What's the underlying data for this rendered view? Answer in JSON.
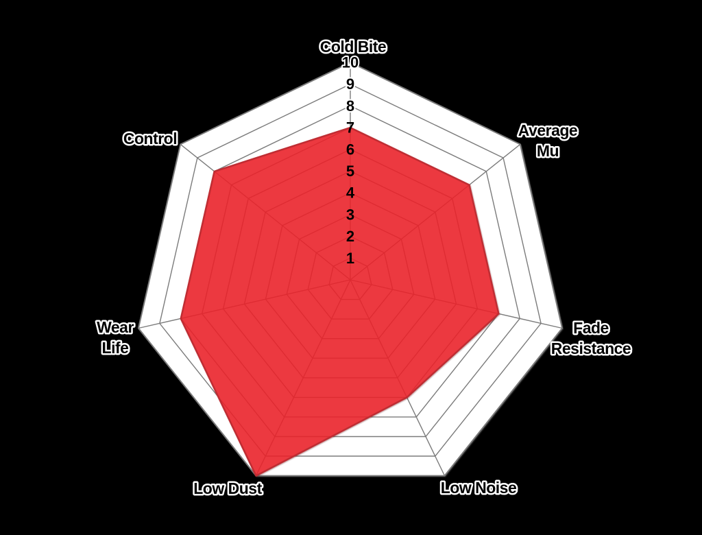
{
  "page": {
    "background_color": "#000000"
  },
  "chart_data": {
    "type": "radar",
    "categories": [
      "Cold Bite",
      "Average Mu",
      "Fade Resistance",
      "Low Noise",
      "Low Dust",
      "Wear Life",
      "Control"
    ],
    "label_lines": [
      [
        "Cold Bite"
      ],
      [
        "Average",
        "Mu"
      ],
      [
        "Fade",
        "Resistance"
      ],
      [
        "Low Noise"
      ],
      [
        "Low Dust"
      ],
      [
        "Wear",
        "Life"
      ],
      [
        "Control"
      ]
    ],
    "values": [
      7,
      7,
      7,
      6,
      10,
      8,
      8
    ],
    "axis_tick_labels": [
      "1",
      "2",
      "3",
      "4",
      "5",
      "6",
      "7",
      "8",
      "9",
      "10"
    ],
    "scale_min": 0,
    "scale_max": 10,
    "grid": true,
    "legend": "none",
    "colors": {
      "background": "#000000",
      "grid_fill": "#ffffff",
      "grid_line": "#7b7b7b",
      "series_fill": "#f2232b",
      "series_fill_opacity": "0.85",
      "series_stroke": "#bf2d33",
      "label_text": "#000000",
      "label_halo": "#ffffff"
    }
  }
}
